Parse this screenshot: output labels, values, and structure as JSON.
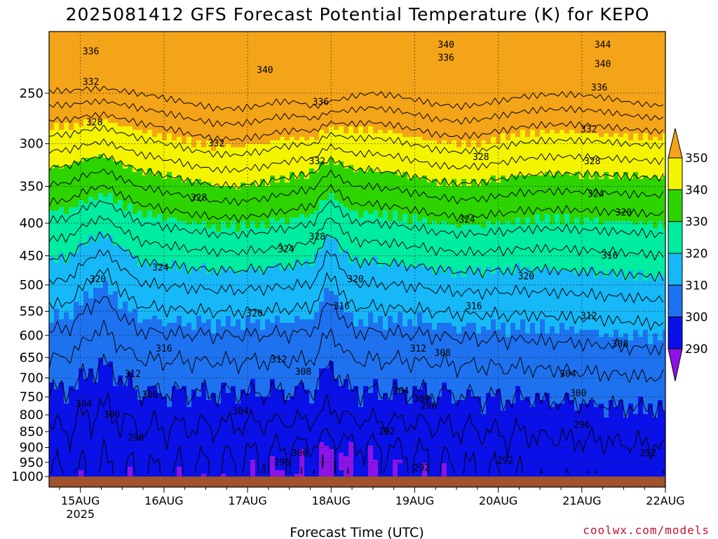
{
  "chart_data": {
    "type": "heatmap",
    "title": "2025081412 GFS Forecast Potential Temperature (K) for KEPO",
    "xlabel": "Forecast Time (UTC)",
    "ylabel": "",
    "x_ticks": [
      {
        "label": "15AUG",
        "sub": "2025",
        "hours": 12
      },
      {
        "label": "16AUG",
        "sub": "",
        "hours": 36
      },
      {
        "label": "17AUG",
        "sub": "",
        "hours": 60
      },
      {
        "label": "18AUG",
        "sub": "",
        "hours": 84
      },
      {
        "label": "19AUG",
        "sub": "",
        "hours": 108
      },
      {
        "label": "20AUG",
        "sub": "",
        "hours": 132
      },
      {
        "label": "21AUG",
        "sub": "",
        "hours": 156
      },
      {
        "label": "22AUG",
        "sub": "",
        "hours": 180
      }
    ],
    "xlim_hours": [
      3,
      180
    ],
    "y_ticks": [
      1000,
      950,
      900,
      850,
      800,
      750,
      700,
      650,
      600,
      550,
      500,
      450,
      400,
      350,
      300,
      250
    ],
    "ylim": [
      1000,
      200
    ],
    "y_scale": "log-pressure",
    "y_inverted": true,
    "grid": "dotted",
    "ground_color": "#a0522d",
    "colorbar": {
      "levels": [
        290,
        300,
        310,
        320,
        330,
        340,
        350
      ],
      "labels": [
        "290",
        "300",
        "310",
        "320",
        "330",
        "340",
        "350"
      ],
      "colors": [
        "#8c14e6",
        "#0a10e8",
        "#1e72f0",
        "#16b8f8",
        "#00eca0",
        "#2ed400",
        "#f4f400",
        "#f4a418"
      ],
      "extend": "both"
    },
    "contour_interval": 4,
    "contour_labels": [
      {
        "text": "336",
        "hours": 15,
        "p": 215
      },
      {
        "text": "332",
        "hours": 15,
        "p": 240
      },
      {
        "text": "328",
        "hours": 16,
        "p": 278
      },
      {
        "text": "340",
        "hours": 65,
        "p": 230
      },
      {
        "text": "336",
        "hours": 81,
        "p": 258
      },
      {
        "text": "332",
        "hours": 51,
        "p": 300
      },
      {
        "text": "332",
        "hours": 80,
        "p": 320
      },
      {
        "text": "328",
        "hours": 46,
        "p": 365
      },
      {
        "text": "328",
        "hours": 80,
        "p": 420
      },
      {
        "text": "324",
        "hours": 35,
        "p": 470
      },
      {
        "text": "324",
        "hours": 71,
        "p": 440
      },
      {
        "text": "320",
        "hours": 17,
        "p": 490
      },
      {
        "text": "320",
        "hours": 62,
        "p": 555
      },
      {
        "text": "320",
        "hours": 91,
        "p": 490
      },
      {
        "text": "316",
        "hours": 87,
        "p": 540
      },
      {
        "text": "316",
        "hours": 36,
        "p": 630
      },
      {
        "text": "312",
        "hours": 27,
        "p": 690
      },
      {
        "text": "312",
        "hours": 69,
        "p": 655
      },
      {
        "text": "308",
        "hours": 76,
        "p": 685
      },
      {
        "text": "308",
        "hours": 32,
        "p": 745
      },
      {
        "text": "304",
        "hours": 13,
        "p": 770
      },
      {
        "text": "304",
        "hours": 58,
        "p": 790
      },
      {
        "text": "300",
        "hours": 21,
        "p": 800
      },
      {
        "text": "296",
        "hours": 28,
        "p": 870
      },
      {
        "text": "300",
        "hours": 75,
        "p": 920
      },
      {
        "text": "296",
        "hours": 70,
        "p": 950
      },
      {
        "text": "340",
        "hours": 117,
        "p": 210
      },
      {
        "text": "336",
        "hours": 117,
        "p": 220
      },
      {
        "text": "328",
        "hours": 127,
        "p": 315
      },
      {
        "text": "324",
        "hours": 123,
        "p": 395
      },
      {
        "text": "320",
        "hours": 140,
        "p": 485
      },
      {
        "text": "316",
        "hours": 125,
        "p": 540
      },
      {
        "text": "312",
        "hours": 109,
        "p": 630
      },
      {
        "text": "308",
        "hours": 116,
        "p": 640
      },
      {
        "text": "304",
        "hours": 104,
        "p": 735
      },
      {
        "text": "300",
        "hours": 110,
        "p": 755
      },
      {
        "text": "296",
        "hours": 112,
        "p": 775
      },
      {
        "text": "292",
        "hours": 100,
        "p": 850
      },
      {
        "text": "292",
        "hours": 110,
        "p": 970
      },
      {
        "text": "292",
        "hours": 134,
        "p": 945
      },
      {
        "text": "344",
        "hours": 162,
        "p": 210
      },
      {
        "text": "340",
        "hours": 162,
        "p": 225
      },
      {
        "text": "336",
        "hours": 161,
        "p": 245
      },
      {
        "text": "332",
        "hours": 158,
        "p": 285
      },
      {
        "text": "328",
        "hours": 159,
        "p": 320
      },
      {
        "text": "324",
        "hours": 160,
        "p": 360
      },
      {
        "text": "320",
        "hours": 168,
        "p": 385
      },
      {
        "text": "316",
        "hours": 164,
        "p": 450
      },
      {
        "text": "312",
        "hours": 158,
        "p": 560
      },
      {
        "text": "308",
        "hours": 167,
        "p": 620
      },
      {
        "text": "304",
        "hours": 152,
        "p": 690
      },
      {
        "text": "300",
        "hours": 155,
        "p": 740
      },
      {
        "text": "296",
        "hours": 156,
        "p": 830
      },
      {
        "text": "292",
        "hours": 175,
        "p": 920
      }
    ]
  },
  "credit": "coolwx.com/models"
}
